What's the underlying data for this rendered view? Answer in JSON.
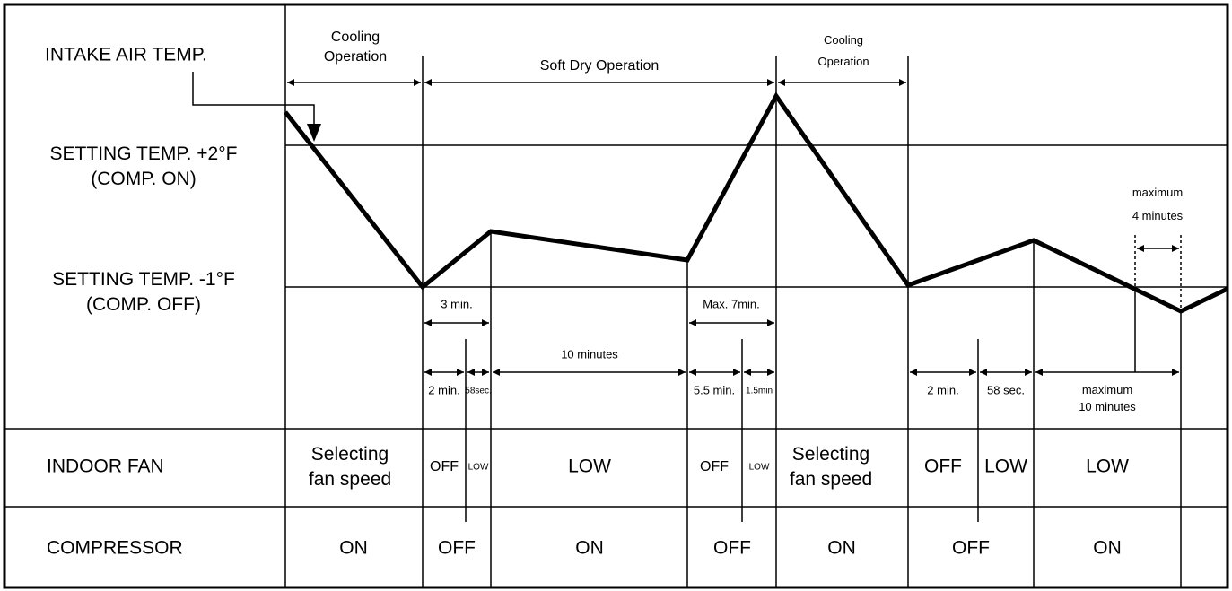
{
  "rows": {
    "intake": "INTAKE AIR TEMP.",
    "setting_high": [
      "SETTING TEMP. +2°F",
      "(COMP. ON)"
    ],
    "setting_low": [
      "SETTING TEMP. -1°F",
      "(COMP. OFF)"
    ],
    "indoor_fan": "INDOOR FAN",
    "compressor": "COMPRESSOR"
  },
  "phases": [
    [
      "Cooling",
      "Operation"
    ],
    [
      "Soft Dry Operation"
    ],
    [
      "Cooling",
      "Operation"
    ]
  ],
  "timings": [
    "3 min.",
    "Max. 7min.",
    "2 min.",
    "58sec.",
    "10 minutes",
    "5.5 min.",
    "1.5min",
    "2 min.",
    "58 sec.",
    [
      "maximum",
      "10 minutes"
    ],
    [
      "maximum",
      "4 minutes"
    ]
  ],
  "fan": [
    [
      "Selecting",
      "fan speed"
    ],
    "OFF",
    "LOW",
    "LOW",
    "OFF",
    "LOW",
    [
      "Selecting",
      "fan speed"
    ],
    "OFF",
    "LOW",
    "LOW"
  ],
  "compressor": [
    "ON",
    "OFF",
    "ON",
    "OFF",
    "ON",
    "OFF",
    "ON"
  ]
}
